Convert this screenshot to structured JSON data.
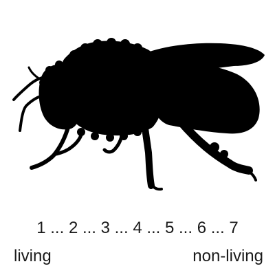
{
  "image": {
    "subject": "bee-silhouette-icon",
    "fill_color": "#000000",
    "background_color": "#ffffff"
  },
  "scale": {
    "points": "1 ... 2 ... 3 ... 4 ... 5 ... 6 ... 7",
    "left_anchor": "living",
    "right_anchor": "non-living"
  }
}
